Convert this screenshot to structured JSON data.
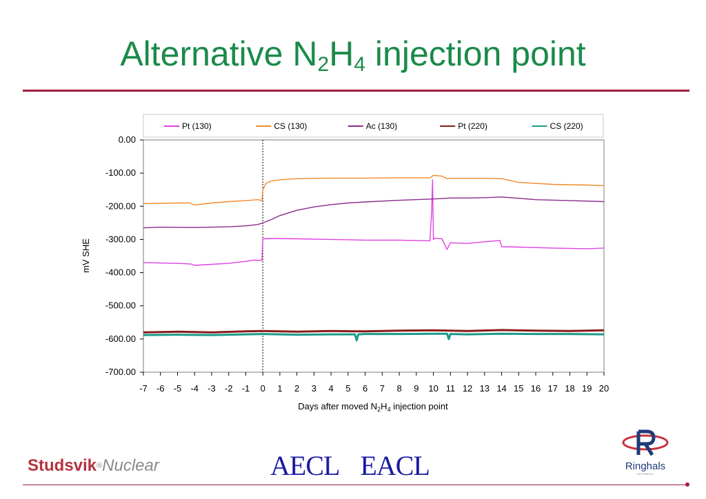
{
  "slide": {
    "title_main": "Alternative N",
    "title_sub1": "2",
    "title_mid": "H",
    "title_sub2": "4",
    "title_end": " injection point"
  },
  "chart_data": {
    "type": "line",
    "ylabel": "mV SHE",
    "xlabel_parts": [
      "Days after moved N",
      "2",
      "H",
      "4",
      " injection point"
    ],
    "xlim": [
      -7,
      20
    ],
    "ylim": [
      -700,
      0
    ],
    "xticks": [
      -7,
      -6,
      -5,
      -4,
      -3,
      -2,
      -1,
      0,
      1,
      2,
      3,
      4,
      5,
      6,
      7,
      8,
      9,
      10,
      11,
      12,
      13,
      14,
      15,
      16,
      17,
      18,
      19,
      20
    ],
    "yticks": [
      0,
      -100,
      -200,
      -300,
      -400,
      -500,
      -600,
      -700
    ],
    "ytick_labels": [
      "0.00",
      "-100.00",
      "-200.00",
      "-300.00",
      "-400.00",
      "-500.00",
      "-600.00",
      "-700.00"
    ],
    "grid": false,
    "legend_position": "top",
    "vline_x": 0,
    "series": [
      {
        "name": "Pt (130)",
        "color": "#e040e0",
        "x": [
          -7,
          -5,
          -4.2,
          -4,
          -3,
          -2,
          -1,
          -0.5,
          -0.05,
          0,
          0.5,
          2,
          4,
          6,
          8,
          9.8,
          9.9,
          9.95,
          10,
          10.1,
          10.5,
          10.8,
          11,
          12,
          13,
          13.9,
          14,
          15,
          17,
          19,
          20
        ],
        "y": [
          -370,
          -372,
          -374,
          -378,
          -375,
          -372,
          -366,
          -362,
          -363,
          -298,
          -297,
          -298,
          -300,
          -302,
          -302,
          -304,
          -215,
          -120,
          -300,
          -296,
          -298,
          -330,
          -310,
          -312,
          -307,
          -303,
          -322,
          -323,
          -326,
          -328,
          -326
        ]
      },
      {
        "name": "CS (130)",
        "color": "#f08a2a",
        "x": [
          -7,
          -6,
          -5,
          -4.3,
          -4,
          -3,
          -2,
          -1,
          -0.3,
          -0.05,
          0,
          0.2,
          0.5,
          1,
          2,
          3,
          4,
          6,
          8,
          9.8,
          10,
          10.5,
          10.8,
          11,
          12,
          13,
          14,
          15,
          17,
          19,
          20
        ],
        "y": [
          -192,
          -191,
          -190,
          -190,
          -196,
          -190,
          -186,
          -183,
          -180,
          -183,
          -150,
          -130,
          -124,
          -120,
          -117,
          -116,
          -115,
          -115,
          -114,
          -114,
          -107,
          -109,
          -117,
          -116,
          -116,
          -116,
          -117,
          -128,
          -134,
          -136,
          -138
        ]
      },
      {
        "name": "Ac (130)",
        "color": "#8a2a8a",
        "x": [
          -7,
          -6,
          -4,
          -2,
          -1,
          -0.3,
          0,
          0.5,
          1,
          1.5,
          2,
          3,
          4,
          5,
          6,
          8,
          10,
          11,
          12,
          13,
          14,
          15,
          16,
          18,
          20
        ],
        "y": [
          -265,
          -263,
          -264,
          -262,
          -259,
          -255,
          -250,
          -240,
          -228,
          -220,
          -212,
          -202,
          -195,
          -190,
          -187,
          -182,
          -178,
          -175,
          -175,
          -174,
          -172,
          -176,
          -180,
          -183,
          -186
        ]
      },
      {
        "name": "Pt (220)",
        "color": "#8a1a1a",
        "x": [
          -7,
          -5,
          -3,
          -1,
          0,
          2,
          4,
          6,
          8,
          10,
          12,
          14,
          16,
          18,
          20
        ],
        "y": [
          -580,
          -578,
          -580,
          -577,
          -576,
          -578,
          -576,
          -577,
          -575,
          -574,
          -576,
          -573,
          -575,
          -576,
          -574
        ]
      },
      {
        "name": "CS (220)",
        "color": "#1a9a8a",
        "x": [
          -7,
          -5,
          -3,
          -1,
          0,
          2,
          4,
          5.4,
          5.5,
          5.6,
          6,
          8,
          10,
          10.8,
          10.9,
          11,
          12,
          14,
          16,
          18,
          20
        ],
        "y": [
          -588,
          -587,
          -588,
          -586,
          -585,
          -587,
          -586,
          -586,
          -604,
          -586,
          -585,
          -585,
          -584,
          -584,
          -600,
          -585,
          -586,
          -584,
          -585,
          -585,
          -586
        ]
      }
    ]
  },
  "footer": {
    "studsvik_bold": "Studsvik",
    "studsvik_reg": "®",
    "studsvik_italic": "Nuclear",
    "aecl_en": "AECL",
    "aecl_fr": "EACL",
    "ringhals_text": "Ringhals",
    "ringhals_sub": "VATTENFALL"
  }
}
